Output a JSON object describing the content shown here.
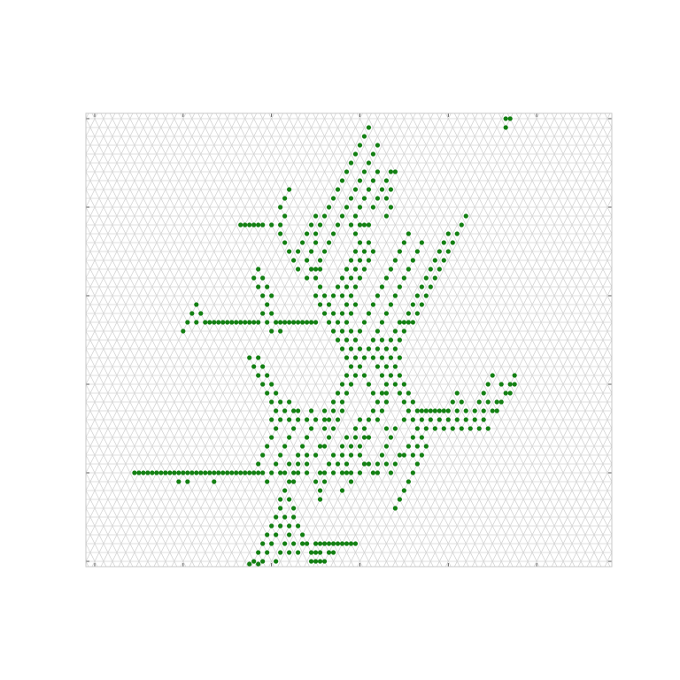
{
  "chart_data": {
    "type": "scatter",
    "title": "",
    "xlabel": "",
    "ylabel": "",
    "xlim": [
      -1,
      58.5
    ],
    "ylim": [
      -0.6,
      50.6
    ],
    "grid": true,
    "grid_style": "triangular lattice",
    "tick_labels": "none",
    "colors": {
      "points": "#138013",
      "grid": "#d4d4d4",
      "frame": "#c8c8c8",
      "background": "#ffffff"
    },
    "cluster_rows": [
      {
        "y": 50,
        "x": [
          46.5,
          47
        ]
      },
      {
        "y": 49,
        "x": [
          31,
          46.5
        ]
      },
      {
        "y": 48,
        "x": [
          30.5
        ]
      },
      {
        "y": 47,
        "x": [
          30,
          32
        ]
      },
      {
        "y": 46,
        "x": [
          29.5,
          31.5
        ]
      },
      {
        "y": 45,
        "x": [
          29,
          31
        ]
      },
      {
        "y": 44,
        "x": [
          28.5,
          30.5,
          32,
          33.5,
          34
        ]
      },
      {
        "y": 43,
        "x": [
          28,
          30,
          31.5,
          33
        ]
      },
      {
        "y": 42,
        "x": [
          22,
          27.5,
          29.5,
          31,
          32.5,
          33.5
        ]
      },
      {
        "y": 41,
        "x": [
          21.5,
          27,
          29,
          30.5,
          32,
          33
        ]
      },
      {
        "y": 40,
        "x": [
          21,
          26.5,
          28.5,
          30,
          31.5,
          33.5
        ]
      },
      {
        "y": 39,
        "x": [
          21.5,
          25,
          26,
          28,
          29.5,
          33,
          42
        ]
      },
      {
        "y": 38,
        "x": [
          16.5,
          17,
          17.5,
          18,
          18.5,
          19,
          20,
          21,
          24.5,
          25.5,
          27.5,
          29,
          30,
          30.5,
          31,
          41.5
        ]
      },
      {
        "y": 37,
        "x": [
          21,
          24,
          25,
          27,
          29.5,
          35.5,
          40,
          41
        ]
      },
      {
        "y": 36,
        "x": [
          21.5,
          23.5,
          25,
          26.5,
          30,
          31,
          35,
          37,
          39.5,
          40.5
        ]
      },
      {
        "y": 35,
        "x": [
          22,
          23,
          24.5,
          26,
          29.5,
          30.5,
          31.5,
          34.5,
          36.5,
          39,
          40
        ]
      },
      {
        "y": 34,
        "x": [
          22.5,
          24,
          25.5,
          29,
          30,
          31,
          34,
          36,
          38.5,
          39.5
        ]
      },
      {
        "y": 33,
        "x": [
          18.5,
          23,
          24.5,
          25,
          25.5,
          28.5,
          29.5,
          30.5,
          33.5,
          35.5,
          38,
          39
        ]
      },
      {
        "y": 32,
        "x": [
          18,
          19,
          24,
          25,
          28,
          29,
          30,
          33,
          35,
          37.5,
          38.5
        ]
      },
      {
        "y": 31,
        "x": [
          18.5,
          19.5,
          25.5,
          27.5,
          28.5,
          29.5,
          32.5,
          34.5,
          37,
          38
        ]
      },
      {
        "y": 30,
        "x": [
          19,
          20,
          25,
          26,
          27,
          28,
          29,
          32,
          34,
          36.5,
          37.5
        ]
      },
      {
        "y": 29,
        "x": [
          11.5,
          19.5,
          25.5,
          26.5,
          28.5,
          29.5,
          31.5,
          33.5,
          36,
          37
        ]
      },
      {
        "y": 28,
        "x": [
          11,
          12,
          19,
          20,
          26,
          27,
          28,
          29,
          31,
          33,
          35.5,
          36.5
        ]
      },
      {
        "y": 27,
        "x": [
          10.5,
          11.5,
          12.5,
          13,
          13.5,
          14,
          14.5,
          15,
          15.5,
          16,
          16.5,
          17,
          17.5,
          18,
          18.5,
          19.5,
          20.5,
          21,
          21.5,
          22,
          22.5,
          23,
          23.5,
          24,
          24.5,
          25,
          26.5,
          27.5,
          28.5,
          30.5,
          32.5,
          34.5,
          35,
          35.5,
          36
        ]
      },
      {
        "y": 26,
        "x": [
          10,
          20,
          21,
          27,
          28,
          29,
          30,
          32,
          34,
          35
        ]
      },
      {
        "y": 25,
        "x": [
          27.5,
          28.5,
          29.5,
          31.5,
          32.5,
          33.5,
          34.5
        ]
      },
      {
        "y": 24,
        "x": [
          28,
          29,
          30,
          31,
          32,
          33,
          34
        ]
      },
      {
        "y": 23,
        "x": [
          17.5,
          18.5,
          28.5,
          29.5,
          30.5,
          31.5,
          32.5,
          33.5,
          34.5
        ]
      },
      {
        "y": 22,
        "x": [
          18,
          19,
          29,
          30,
          32,
          33,
          34
        ]
      },
      {
        "y": 21,
        "x": [
          18.5,
          19.5,
          28.5,
          29.5,
          30.5,
          32.5,
          33.5,
          34.5,
          45,
          47.5
        ]
      },
      {
        "y": 20,
        "x": [
          19,
          20,
          28,
          29,
          31,
          33,
          34,
          35,
          44.5,
          46,
          47,
          47.5
        ]
      },
      {
        "y": 19,
        "x": [
          19.5,
          20.5,
          27.5,
          28.5,
          31.5,
          32.5,
          33,
          34.5,
          35.5,
          41,
          44,
          46.5,
          47
        ]
      },
      {
        "y": 18,
        "x": [
          20,
          21,
          22,
          27,
          28,
          32,
          33,
          35,
          36,
          40.5,
          41.5,
          43.5,
          44.5,
          45.5,
          46
        ]
      },
      {
        "y": 17,
        "x": [
          20.5,
          21.5,
          22.5,
          23,
          24.5,
          26,
          27,
          28,
          31.5,
          32.5,
          35.5,
          36.5,
          37,
          37.5,
          38,
          38.5,
          39,
          39.5,
          40,
          41,
          42,
          43,
          44,
          45,
          45.5
        ]
      },
      {
        "y": 16,
        "x": [
          20,
          21,
          22,
          23,
          24,
          25,
          26,
          26.5,
          27.5,
          30,
          31,
          32,
          35,
          36,
          37,
          38,
          39,
          40,
          41,
          42,
          43,
          44
        ]
      },
      {
        "y": 15,
        "x": [
          20.5,
          22.5,
          24.5,
          26,
          27,
          29.5,
          30.5,
          33,
          34,
          36.5,
          37.5,
          38.5,
          39.5,
          40.5,
          41.5,
          42.5,
          43.5,
          44.5
        ]
      },
      {
        "y": 14,
        "x": [
          20,
          22,
          24,
          26.5,
          28.5,
          29.5,
          30.5,
          31,
          33.5,
          36,
          37
        ]
      },
      {
        "y": 13,
        "x": [
          19.5,
          21.5,
          23.5,
          25.5,
          26,
          28,
          29,
          30,
          33,
          35.5,
          36.5,
          37.5
        ]
      },
      {
        "y": 12,
        "x": [
          19,
          21,
          23,
          24,
          25,
          27,
          28,
          29,
          30,
          32.5,
          34.5,
          35,
          36,
          37
        ]
      },
      {
        "y": 11,
        "x": [
          18.5,
          20.5,
          22,
          23,
          24,
          26.5,
          27.5,
          28.5,
          30.5,
          31,
          32,
          33,
          34,
          36.5
        ]
      },
      {
        "y": 10,
        "x": [
          4.5,
          5,
          5.5,
          6,
          6.5,
          7,
          7.5,
          8,
          8.5,
          9,
          9.5,
          10,
          10.5,
          11,
          11.5,
          12,
          12.5,
          13,
          13.5,
          14,
          14.5,
          15,
          15.5,
          16,
          16.5,
          17,
          17.5,
          18,
          18.5,
          19,
          20,
          21,
          21.5,
          22.5,
          23,
          24,
          25.5,
          26,
          27,
          28,
          28.5,
          29,
          30,
          31.5,
          32,
          33.5,
          36
        ]
      },
      {
        "y": 9,
        "x": [
          9.5,
          10.5,
          13.5,
          19.5,
          22,
          22.5,
          25,
          26,
          29,
          35.5
        ]
      },
      {
        "y": 8,
        "x": [
          21.5,
          25.5,
          28,
          35
        ]
      },
      {
        "y": 7,
        "x": [
          21,
          22,
          25.5,
          34.5
        ]
      },
      {
        "y": 6,
        "x": [
          21,
          22.5,
          34
        ]
      },
      {
        "y": 5,
        "x": [
          20.5,
          21.5,
          22.5
        ]
      },
      {
        "y": 4,
        "x": [
          20,
          21,
          22,
          23
        ]
      },
      {
        "y": 3,
        "x": [
          19.5,
          20.5,
          22,
          23.5
        ]
      },
      {
        "y": 2,
        "x": [
          19,
          20,
          21.5,
          22.5,
          23.5,
          24,
          25,
          25.5,
          26,
          26.5,
          27,
          27.5,
          28,
          28.5,
          29,
          29.5
        ]
      },
      {
        "y": 1,
        "x": [
          18.5,
          19.5,
          21,
          22,
          23,
          24.5,
          25,
          25.5,
          26.5,
          27
        ]
      },
      {
        "y": 0,
        "x": [
          18,
          19,
          20.5,
          24.5,
          25,
          25.5,
          26
        ]
      },
      {
        "y": -0.3,
        "x": [
          17.5,
          18.5
        ]
      }
    ]
  }
}
